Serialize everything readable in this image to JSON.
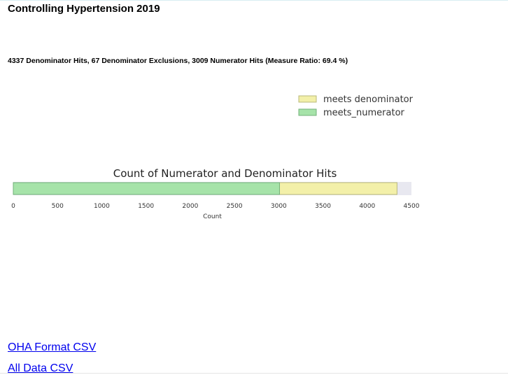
{
  "page": {
    "title": "Controlling Hypertension 2019",
    "summary": "4337 Denominator Hits, 67 Denominator Exclusions, 3009 Numerator Hits (Measure Ratio: 69.4 %)"
  },
  "links": {
    "oha_csv": "OHA Format CSV",
    "all_csv": "All Data CSV"
  },
  "chart_data": {
    "type": "bar",
    "orientation": "horizontal-stacked",
    "title": "Count of Numerator and Denominator Hits",
    "xlabel": "Count",
    "ylabel": "",
    "xlim": [
      0,
      4500
    ],
    "x_ticks": [
      0,
      500,
      1000,
      1500,
      2000,
      2500,
      3000,
      3500,
      4000,
      4500
    ],
    "x_tick_labels": [
      "0",
      "500",
      "1000",
      "1500",
      "2000",
      "2500",
      "3000",
      "3500",
      "4000",
      "4500"
    ],
    "legend_position": "top-right",
    "series": [
      {
        "name": "meets denominator",
        "value": 4337,
        "color": "#f3f0a9",
        "edge": "#b9b87a"
      },
      {
        "name": "meets_numerator",
        "value": 3009,
        "color": "#a6e3a9",
        "edge": "#73b07a"
      }
    ],
    "axes_background": "#e8e8f0"
  }
}
